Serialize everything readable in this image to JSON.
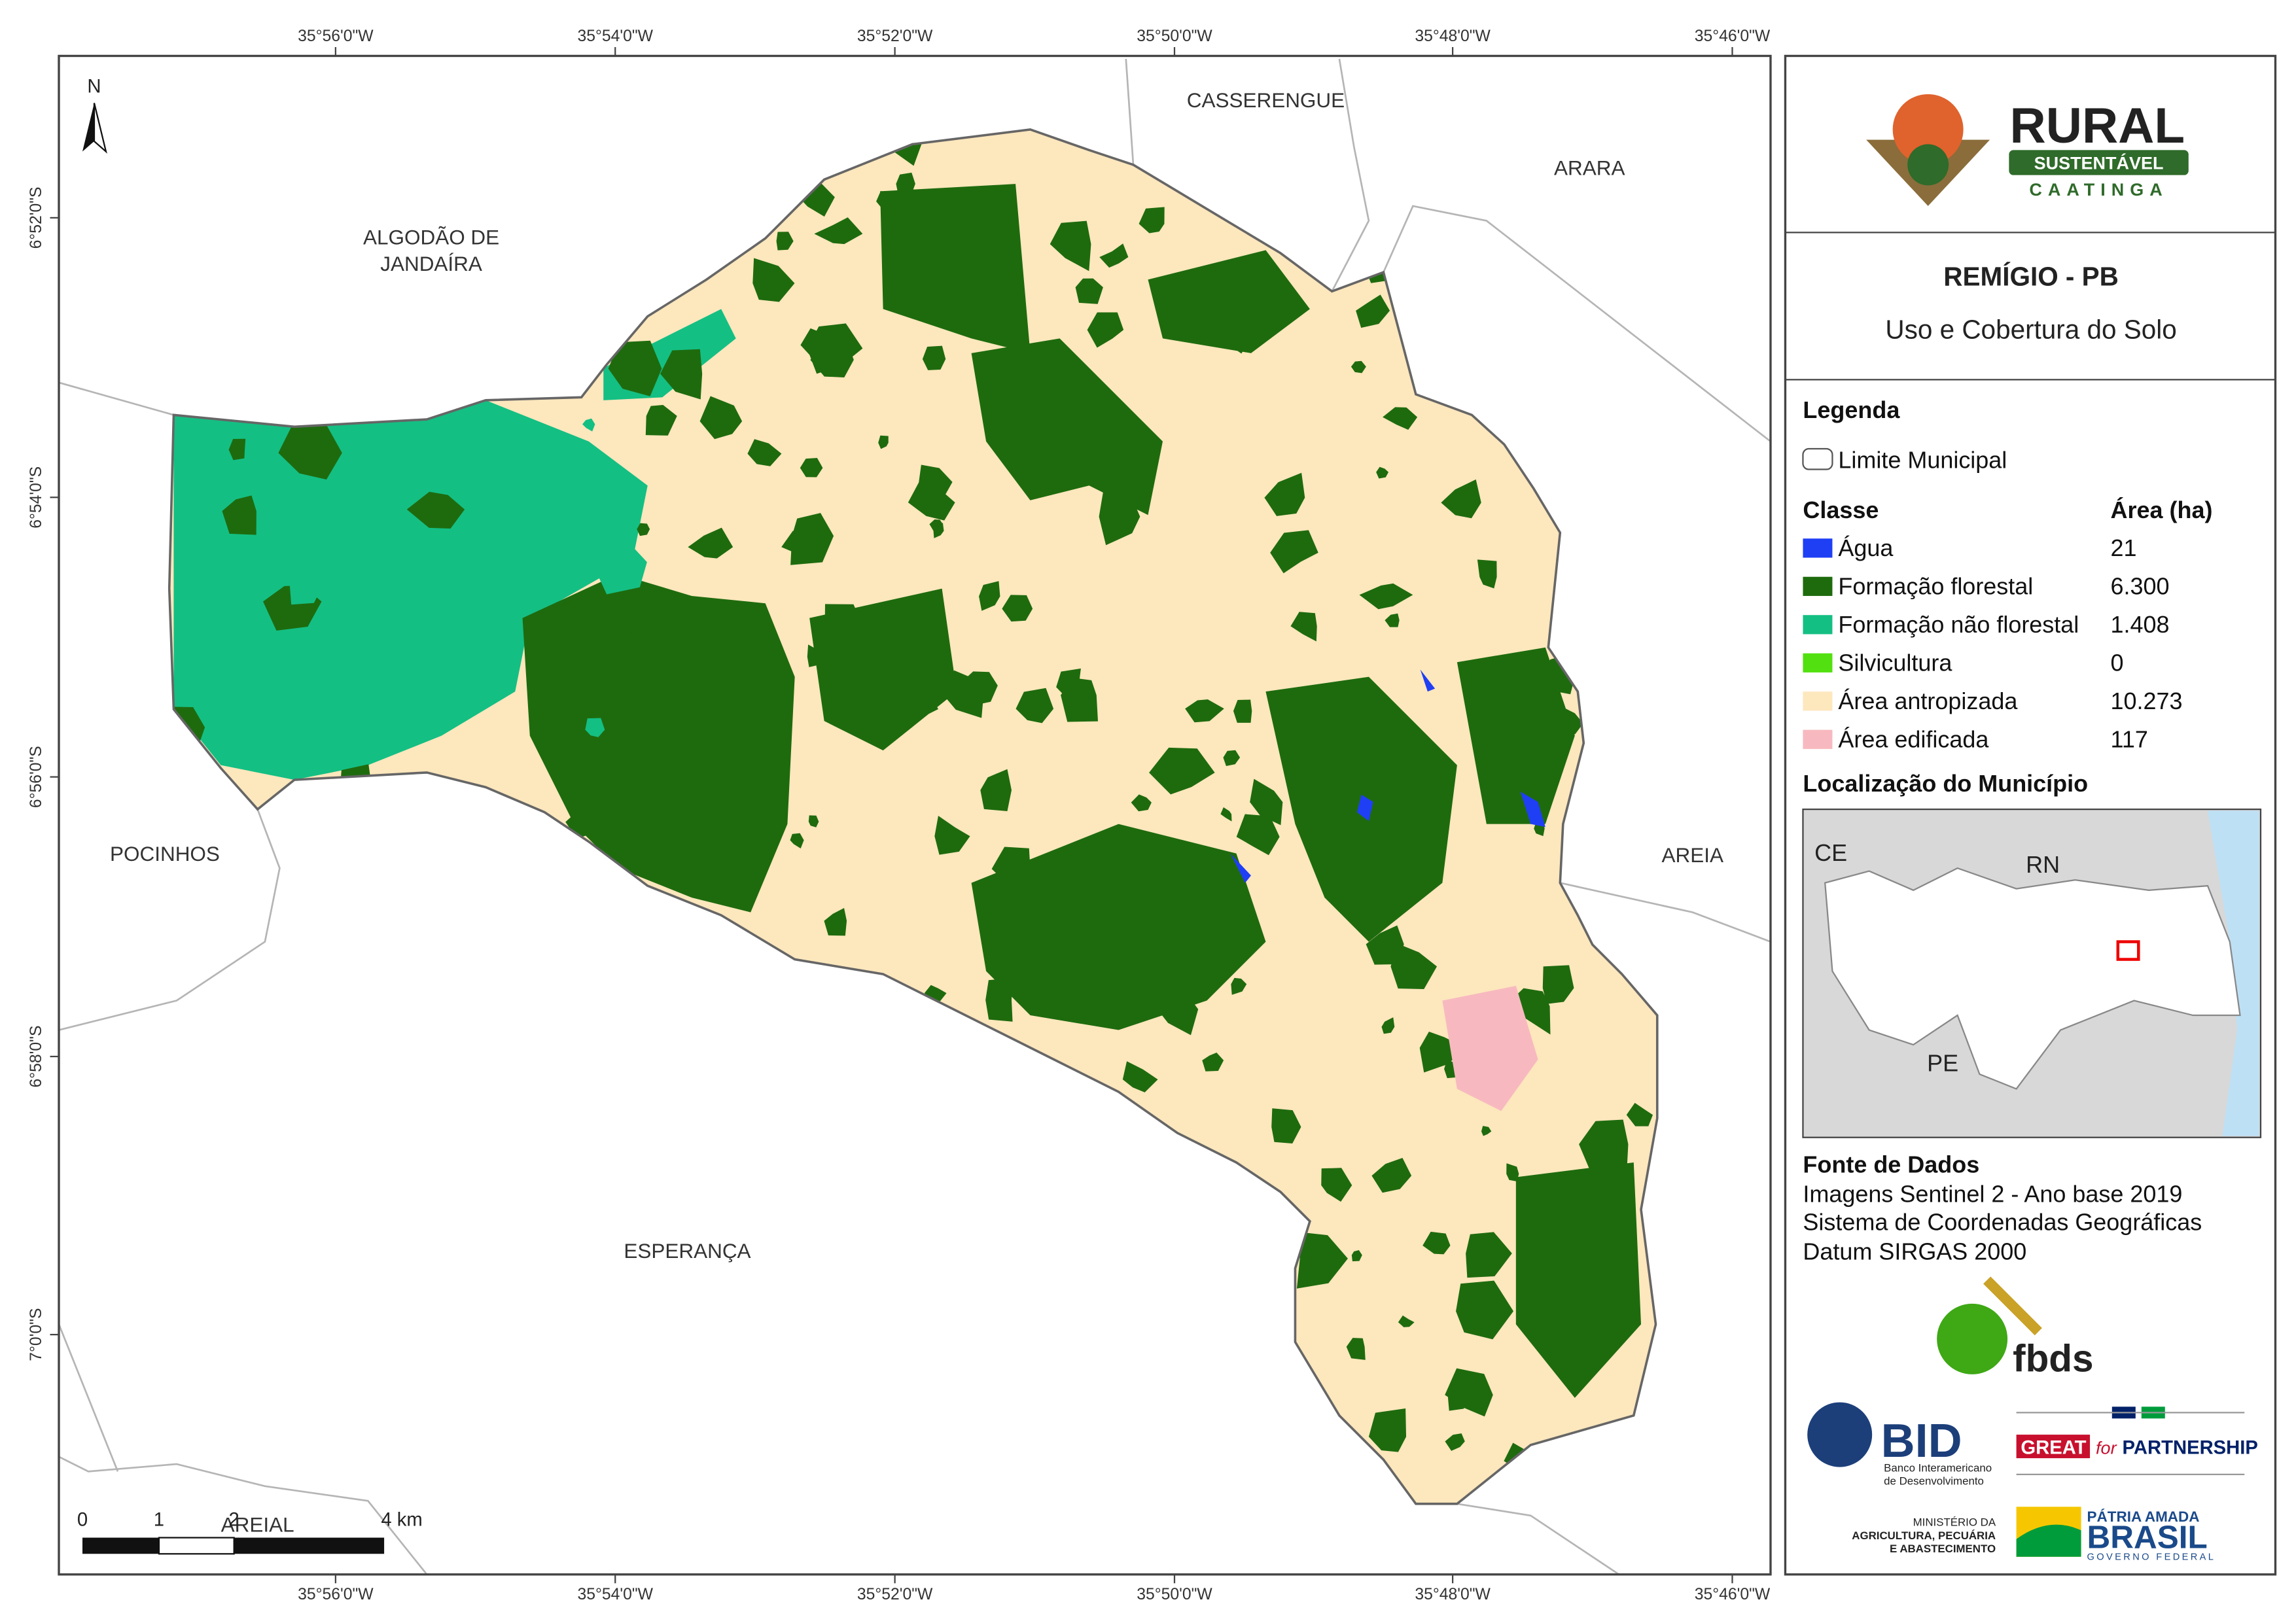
{
  "map": {
    "lon_labels": [
      "35°56'0\"W",
      "35°54'0\"W",
      "35°52'0\"W",
      "35°50'0\"W",
      "35°48'0\"W",
      "35°46'0\"W"
    ],
    "lat_labels": [
      "6°52'0\"S",
      "6°54'0\"S",
      "6°56'0\"S",
      "6°58'0\"S",
      "7°0'0\"S"
    ],
    "north": "N",
    "neighbors": [
      [
        "CASSERENGUE"
      ],
      [
        "ARARA"
      ],
      [
        "ALGODÃO DE",
        "JANDAÍRA"
      ],
      [
        "POCINHOS"
      ],
      [
        "AREIA"
      ],
      [
        "ESPERANÇA"
      ],
      [
        "AREIAL"
      ]
    ],
    "scale_bar": [
      "0",
      "1",
      "2",
      "4 km"
    ]
  },
  "logo": {
    "title": "RURAL",
    "subtitle": "SUSTENTÁVEL",
    "region": "CAATINGA"
  },
  "header": {
    "title": "REMÍGIO - PB",
    "subtitle": "Uso e Cobertura do Solo"
  },
  "legend": {
    "title": "Legenda",
    "boundary": "Limite Municipal",
    "class_header": "Classe",
    "area_header": "Área (ha)",
    "classes": [
      {
        "name": "Água",
        "area": "21",
        "color": "#1f3ff5"
      },
      {
        "name": "Formação florestal",
        "area": "6.300",
        "color": "#1e6b0e"
      },
      {
        "name": "Formação não florestal",
        "area": "1.408",
        "color": "#14bf83"
      },
      {
        "name": "Silvicultura",
        "area": "0",
        "color": "#52e010"
      },
      {
        "name": "Área antropizada",
        "area": "10.273",
        "color": "#fde7bd"
      },
      {
        "name": "Área edificada",
        "area": "117",
        "color": "#f7b9bf"
      }
    ]
  },
  "location": {
    "title": "Localização do Município",
    "labels": [
      "CE",
      "RN",
      "PE"
    ]
  },
  "sources": {
    "title": "Fonte de Dados",
    "lines": [
      "Imagens Sentinel 2 - Ano base 2019",
      "Sistema de Coordenadas Geográficas",
      "Datum SIRGAS 2000"
    ]
  },
  "partners": {
    "fbds": "fbds",
    "bid": "BID",
    "bid_name": [
      "Banco Interamericano",
      "de Desenvolvimento"
    ],
    "great": "GREAT",
    "great_for": "for",
    "great_partnership": "PARTNERSHIP",
    "ministry": [
      "MINISTÉRIO DA",
      "AGRICULTURA, PECUÁRIA",
      "E ABASTECIMENTO"
    ],
    "brasil_top": "PÁTRIA AMADA",
    "brasil": "BRASIL",
    "brasil_gov": "GOVERNO FEDERAL"
  }
}
